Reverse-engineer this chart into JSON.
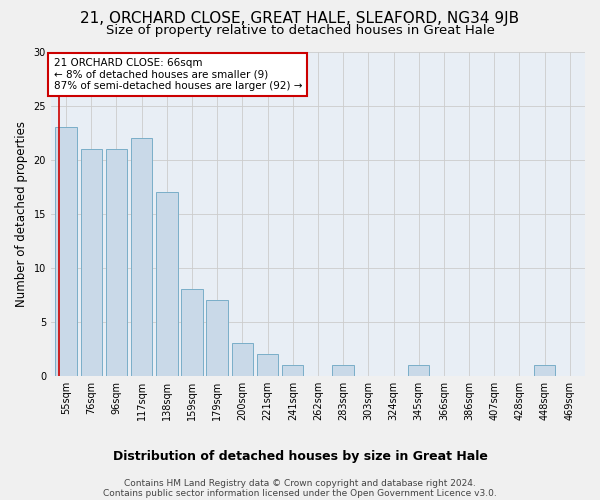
{
  "title1": "21, ORCHARD CLOSE, GREAT HALE, SLEAFORD, NG34 9JB",
  "title2": "Size of property relative to detached houses in Great Hale",
  "xlabel": "Distribution of detached houses by size in Great Hale",
  "ylabel": "Number of detached properties",
  "categories": [
    "55sqm",
    "76sqm",
    "96sqm",
    "117sqm",
    "138sqm",
    "159sqm",
    "179sqm",
    "200sqm",
    "221sqm",
    "241sqm",
    "262sqm",
    "283sqm",
    "303sqm",
    "324sqm",
    "345sqm",
    "366sqm",
    "386sqm",
    "407sqm",
    "428sqm",
    "448sqm",
    "469sqm"
  ],
  "values": [
    23,
    21,
    21,
    22,
    17,
    8,
    7,
    3,
    2,
    1,
    0,
    1,
    0,
    0,
    1,
    0,
    0,
    0,
    0,
    1,
    0
  ],
  "bar_color": "#c9d9e8",
  "bar_edge_color": "#7aaec8",
  "vline_color": "#cc0000",
  "annotation_text": "21 ORCHARD CLOSE: 66sqm\n← 8% of detached houses are smaller (9)\n87% of semi-detached houses are larger (92) →",
  "annotation_box_color": "#ffffff",
  "annotation_box_edge_color": "#cc0000",
  "ylim": [
    0,
    30
  ],
  "yticks": [
    0,
    5,
    10,
    15,
    20,
    25,
    30
  ],
  "grid_color": "#cccccc",
  "bg_color": "#e8eef5",
  "fig_bg_color": "#f0f0f0",
  "footer1": "Contains HM Land Registry data © Crown copyright and database right 2024.",
  "footer2": "Contains public sector information licensed under the Open Government Licence v3.0.",
  "title1_fontsize": 11,
  "title2_fontsize": 9.5,
  "xlabel_fontsize": 9,
  "ylabel_fontsize": 8.5,
  "tick_fontsize": 7,
  "annotation_fontsize": 7.5,
  "footer_fontsize": 6.5
}
